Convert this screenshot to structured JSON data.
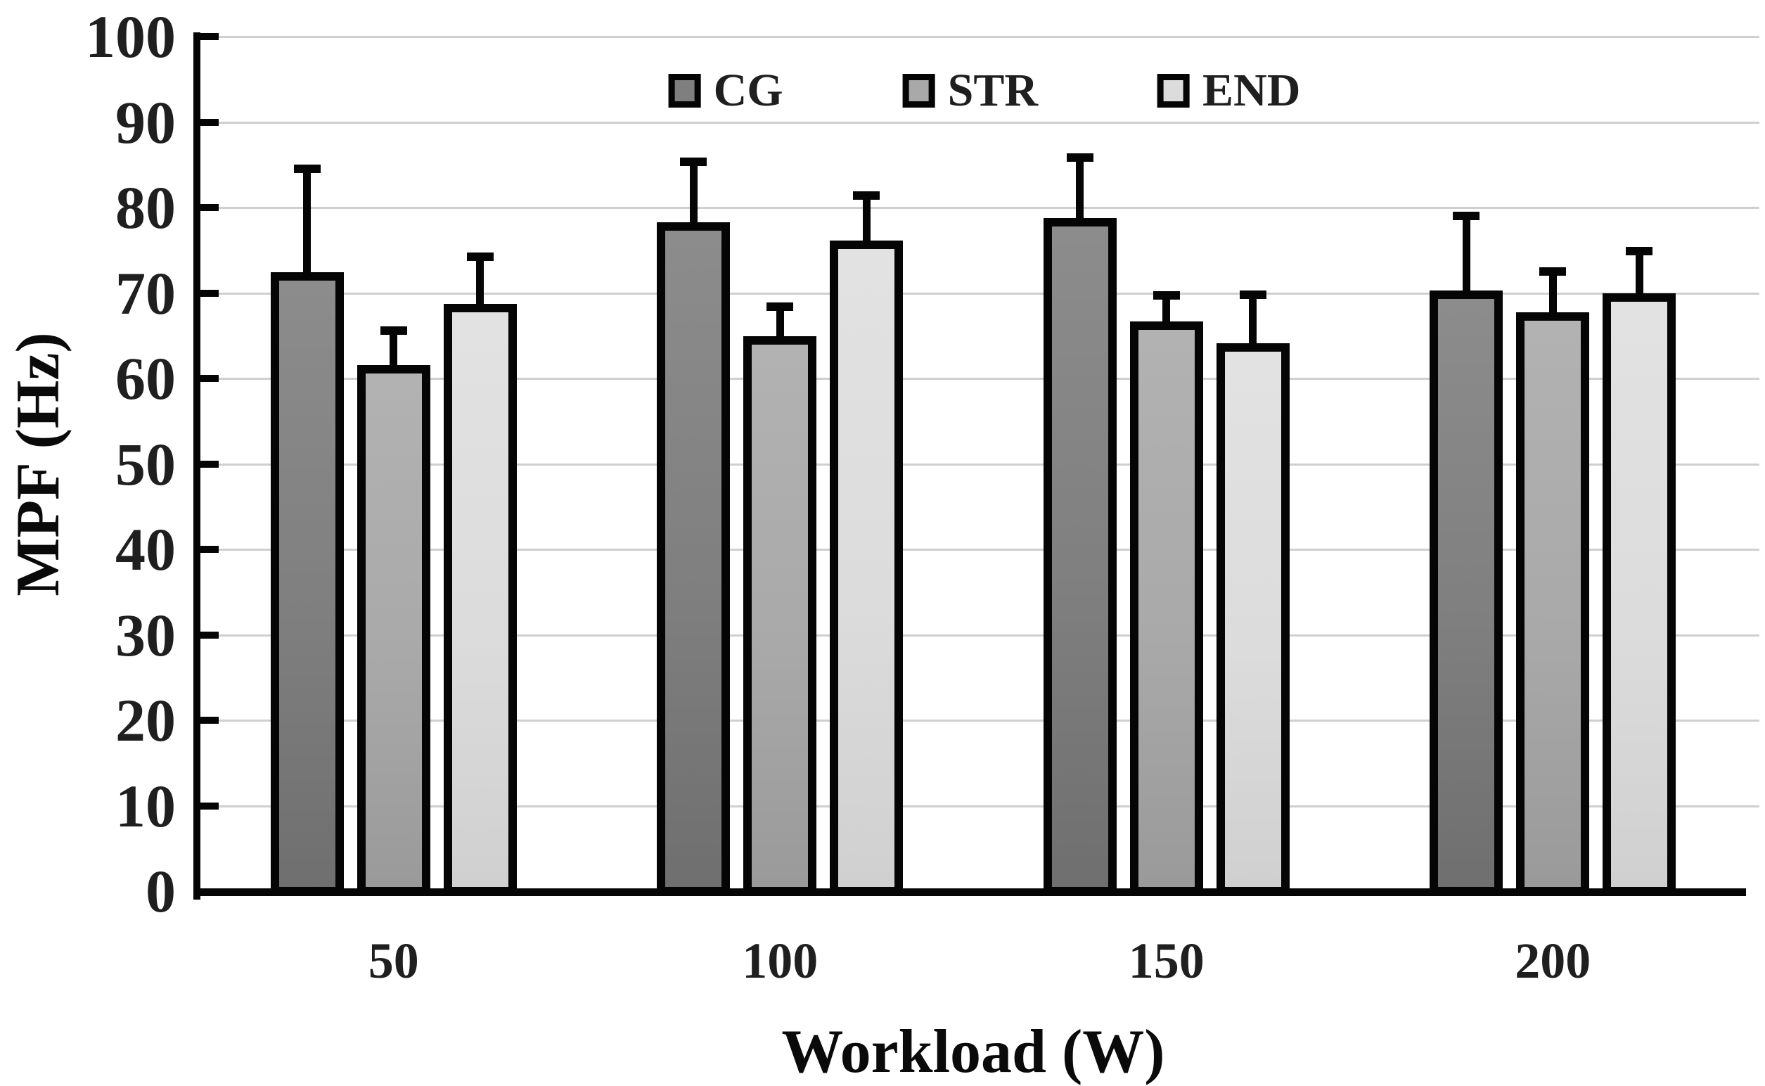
{
  "figure": {
    "background": "#ffffff",
    "text_color": "#1f1f1f",
    "axis_color": "#050505",
    "grid_color": "#cfcfcf"
  },
  "chart_data": {
    "type": "bar",
    "title": "",
    "xlabel": "Workload (W)",
    "ylabel": "MPF (Hz)",
    "categories": [
      "50",
      "100",
      "150",
      "200"
    ],
    "series": [
      {
        "name": "CG",
        "fill": "#7f7f7f",
        "fill_top": "#8c8c8c",
        "fill_bottom": "#6f6f6f",
        "values": [
          72.4,
          78.3,
          78.8,
          70.3
        ],
        "errors_up": [
          12.3,
          7.2,
          7.2,
          8.9
        ]
      },
      {
        "name": "STR",
        "fill": "#a9a9a9",
        "fill_top": "#b2b2b2",
        "fill_bottom": "#9a9a9a",
        "values": [
          61.6,
          64.9,
          66.7,
          67.7
        ],
        "errors_up": [
          4.2,
          3.7,
          3.2,
          5.0
        ]
      },
      {
        "name": "END",
        "fill": "#dcdcdc",
        "fill_top": "#e2e2e2",
        "fill_bottom": "#d0d0d0",
        "values": [
          68.7,
          76.1,
          64.1,
          70.0
        ],
        "errors_up": [
          5.7,
          5.5,
          5.9,
          5.1
        ]
      }
    ],
    "ylim": [
      0,
      100
    ],
    "yticks": [
      0,
      10,
      20,
      30,
      40,
      50,
      60,
      70,
      80,
      90,
      100
    ],
    "grid": "horizontal",
    "legend_position": "top-center",
    "bar_border_color": "#050505",
    "error_bar_color": "#050505"
  }
}
